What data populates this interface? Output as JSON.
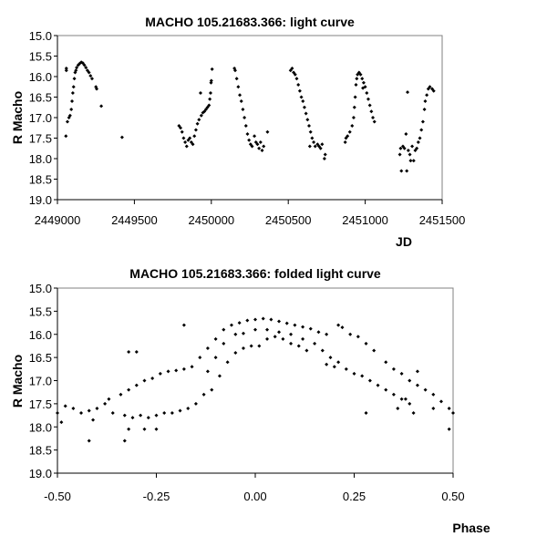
{
  "chart_data": [
    {
      "type": "scatter",
      "title": "MACHO 105.21683.366: light curve",
      "xlabel": "JD",
      "ylabel": "R Macho",
      "xlim": [
        2449000,
        2451500
      ],
      "ylim": [
        15.0,
        19.0
      ],
      "y_inverted": true,
      "grid": false,
      "xticks": [
        "2449000",
        "2449500",
        "2450000",
        "2450500",
        "2451000",
        "2451500"
      ],
      "yticks": [
        "15.0",
        "15.5",
        "16.0",
        "16.5",
        "17.0",
        "17.5",
        "18.0",
        "18.5",
        "19.0"
      ],
      "points": [
        [
          2449055,
          17.45
        ],
        [
          2449058,
          15.8
        ],
        [
          2449058,
          15.85
        ],
        [
          2449065,
          17.1
        ],
        [
          2449075,
          17.0
        ],
        [
          2449082,
          16.95
        ],
        [
          2449090,
          16.8
        ],
        [
          2449095,
          16.6
        ],
        [
          2449100,
          16.4
        ],
        [
          2449105,
          16.25
        ],
        [
          2449110,
          16.05
        ],
        [
          2449115,
          15.9
        ],
        [
          2449120,
          15.85
        ],
        [
          2449125,
          15.78
        ],
        [
          2449135,
          15.72
        ],
        [
          2449145,
          15.68
        ],
        [
          2449155,
          15.65
        ],
        [
          2449165,
          15.67
        ],
        [
          2449175,
          15.72
        ],
        [
          2449185,
          15.78
        ],
        [
          2449195,
          15.85
        ],
        [
          2449205,
          15.9
        ],
        [
          2449215,
          15.98
        ],
        [
          2449225,
          16.05
        ],
        [
          2449250,
          16.25
        ],
        [
          2449255,
          16.3
        ],
        [
          2449285,
          16.72
        ],
        [
          2449420,
          17.48
        ],
        [
          2449790,
          17.2
        ],
        [
          2449800,
          17.25
        ],
        [
          2449810,
          17.35
        ],
        [
          2449820,
          17.5
        ],
        [
          2449830,
          17.6
        ],
        [
          2449840,
          17.7
        ],
        [
          2449850,
          17.55
        ],
        [
          2449860,
          17.5
        ],
        [
          2449870,
          17.6
        ],
        [
          2449880,
          17.65
        ],
        [
          2449890,
          17.45
        ],
        [
          2449900,
          17.3
        ],
        [
          2449910,
          17.15
        ],
        [
          2449920,
          17.05
        ],
        [
          2449930,
          16.4
        ],
        [
          2449935,
          16.95
        ],
        [
          2449945,
          16.88
        ],
        [
          2449955,
          16.85
        ],
        [
          2449965,
          16.8
        ],
        [
          2449975,
          16.75
        ],
        [
          2449985,
          16.7
        ],
        [
          2449990,
          16.55
        ],
        [
          2449995,
          16.4
        ],
        [
          2449998,
          16.15
        ],
        [
          2450000,
          16.1
        ],
        [
          2450005,
          15.82
        ],
        [
          2450150,
          15.8
        ],
        [
          2450155,
          15.85
        ],
        [
          2450165,
          16.05
        ],
        [
          2450175,
          16.25
        ],
        [
          2450185,
          16.45
        ],
        [
          2450195,
          16.6
        ],
        [
          2450205,
          16.8
        ],
        [
          2450215,
          17.0
        ],
        [
          2450225,
          17.2
        ],
        [
          2450235,
          17.4
        ],
        [
          2450245,
          17.55
        ],
        [
          2450255,
          17.65
        ],
        [
          2450265,
          17.7
        ],
        [
          2450280,
          17.45
        ],
        [
          2450290,
          17.6
        ],
        [
          2450300,
          17.65
        ],
        [
          2450310,
          17.75
        ],
        [
          2450320,
          17.6
        ],
        [
          2450330,
          17.8
        ],
        [
          2450340,
          17.7
        ],
        [
          2450365,
          17.35
        ],
        [
          2450515,
          15.85
        ],
        [
          2450525,
          15.8
        ],
        [
          2450535,
          15.9
        ],
        [
          2450545,
          15.95
        ],
        [
          2450555,
          16.05
        ],
        [
          2450565,
          16.2
        ],
        [
          2450575,
          16.35
        ],
        [
          2450585,
          16.5
        ],
        [
          2450595,
          16.6
        ],
        [
          2450605,
          16.75
        ],
        [
          2450615,
          16.9
        ],
        [
          2450625,
          17.05
        ],
        [
          2450635,
          17.2
        ],
        [
          2450645,
          17.35
        ],
        [
          2450655,
          17.5
        ],
        [
          2450665,
          17.6
        ],
        [
          2450640,
          17.7
        ],
        [
          2450675,
          17.7
        ],
        [
          2450690,
          17.65
        ],
        [
          2450700,
          17.7
        ],
        [
          2450710,
          17.75
        ],
        [
          2450720,
          17.65
        ],
        [
          2450735,
          18.0
        ],
        [
          2450740,
          17.9
        ],
        [
          2450870,
          17.6
        ],
        [
          2450875,
          17.5
        ],
        [
          2450885,
          17.45
        ],
        [
          2450900,
          17.35
        ],
        [
          2450915,
          17.2
        ],
        [
          2450925,
          17.0
        ],
        [
          2450930,
          16.75
        ],
        [
          2450935,
          16.5
        ],
        [
          2450940,
          16.2
        ],
        [
          2450945,
          16.05
        ],
        [
          2450950,
          15.95
        ],
        [
          2450960,
          15.9
        ],
        [
          2450970,
          15.95
        ],
        [
          2450980,
          16.05
        ],
        [
          2450990,
          16.15
        ],
        [
          2451000,
          16.25
        ],
        [
          2451010,
          16.4
        ],
        [
          2451020,
          16.55
        ],
        [
          2451030,
          16.7
        ],
        [
          2451040,
          16.85
        ],
        [
          2451050,
          17.0
        ],
        [
          2451060,
          17.1
        ],
        [
          2450985,
          16.28
        ],
        [
          2451225,
          17.9
        ],
        [
          2451230,
          17.75
        ],
        [
          2451235,
          18.3
        ],
        [
          2451245,
          17.7
        ],
        [
          2451255,
          17.75
        ],
        [
          2451265,
          17.4
        ],
        [
          2451270,
          18.3
        ],
        [
          2451275,
          16.38
        ],
        [
          2451280,
          17.8
        ],
        [
          2451290,
          17.9
        ],
        [
          2451295,
          18.05
        ],
        [
          2451305,
          17.7
        ],
        [
          2451315,
          18.05
        ],
        [
          2451325,
          17.8
        ],
        [
          2451335,
          17.75
        ],
        [
          2451345,
          17.6
        ],
        [
          2451355,
          17.5
        ],
        [
          2451365,
          17.3
        ],
        [
          2451375,
          17.1
        ],
        [
          2451385,
          16.8
        ],
        [
          2451390,
          16.6
        ],
        [
          2451400,
          16.45
        ],
        [
          2451410,
          16.3
        ],
        [
          2451420,
          16.25
        ],
        [
          2451435,
          16.3
        ],
        [
          2451445,
          16.35
        ]
      ]
    },
    {
      "type": "scatter",
      "title": "MACHO 105.21683.366: folded light curve",
      "xlabel": "Phase",
      "ylabel": "R Macho",
      "xlim": [
        -0.5,
        0.5
      ],
      "ylim": [
        15.0,
        19.0
      ],
      "y_inverted": true,
      "grid": false,
      "xticks": [
        "-0.50",
        "-0.25",
        "0.00",
        "0.25",
        "0.50"
      ],
      "yticks": [
        "15.0",
        "15.5",
        "16.0",
        "16.5",
        "17.0",
        "17.5",
        "18.0",
        "18.5",
        "19.0"
      ],
      "points": [
        [
          -0.5,
          17.7
        ],
        [
          -0.49,
          17.9
        ],
        [
          -0.48,
          17.55
        ],
        [
          -0.46,
          17.6
        ],
        [
          -0.44,
          17.7
        ],
        [
          -0.42,
          17.65
        ],
        [
          -0.41,
          17.85
        ],
        [
          -0.4,
          17.6
        ],
        [
          -0.38,
          17.5
        ],
        [
          -0.37,
          17.4
        ],
        [
          -0.36,
          17.7
        ],
        [
          -0.34,
          17.3
        ],
        [
          -0.32,
          17.2
        ],
        [
          -0.3,
          17.1
        ],
        [
          -0.28,
          17.0
        ],
        [
          -0.26,
          16.95
        ],
        [
          -0.24,
          16.85
        ],
        [
          -0.22,
          16.8
        ],
        [
          -0.2,
          16.78
        ],
        [
          -0.18,
          16.75
        ],
        [
          -0.16,
          16.7
        ],
        [
          -0.14,
          16.5
        ],
        [
          -0.12,
          16.3
        ],
        [
          -0.1,
          16.1
        ],
        [
          -0.08,
          15.9
        ],
        [
          -0.06,
          15.8
        ],
        [
          -0.04,
          15.75
        ],
        [
          -0.02,
          15.7
        ],
        [
          0.0,
          15.68
        ],
        [
          0.02,
          15.66
        ],
        [
          0.04,
          15.68
        ],
        [
          0.06,
          15.72
        ],
        [
          0.08,
          15.76
        ],
        [
          0.1,
          15.8
        ],
        [
          0.12,
          15.84
        ],
        [
          0.14,
          15.88
        ],
        [
          0.16,
          15.95
        ],
        [
          0.18,
          16.0
        ],
        [
          -0.33,
          17.75
        ],
        [
          -0.31,
          17.8
        ],
        [
          -0.29,
          17.75
        ],
        [
          -0.27,
          17.8
        ],
        [
          -0.25,
          17.75
        ],
        [
          -0.23,
          17.7
        ],
        [
          -0.21,
          17.7
        ],
        [
          -0.19,
          17.65
        ],
        [
          -0.17,
          17.6
        ],
        [
          -0.15,
          17.5
        ],
        [
          -0.13,
          17.3
        ],
        [
          -0.11,
          17.2
        ],
        [
          -0.09,
          16.9
        ],
        [
          -0.07,
          16.6
        ],
        [
          -0.05,
          16.4
        ],
        [
          -0.03,
          16.3
        ],
        [
          -0.01,
          16.25
        ],
        [
          0.01,
          16.25
        ],
        [
          0.03,
          16.1
        ],
        [
          0.05,
          16.05
        ],
        [
          0.07,
          16.1
        ],
        [
          0.09,
          16.2
        ],
        [
          0.11,
          16.25
        ],
        [
          0.13,
          16.35
        ],
        [
          -0.12,
          16.8
        ],
        [
          -0.1,
          16.5
        ],
        [
          -0.08,
          16.2
        ],
        [
          -0.05,
          16.0
        ],
        [
          -0.03,
          15.98
        ],
        [
          0.0,
          15.9
        ],
        [
          0.03,
          15.9
        ],
        [
          0.06,
          15.95
        ],
        [
          0.09,
          16.0
        ],
        [
          0.12,
          16.1
        ],
        [
          0.15,
          16.2
        ],
        [
          0.17,
          16.35
        ],
        [
          0.19,
          16.5
        ],
        [
          0.21,
          16.6
        ],
        [
          0.23,
          16.75
        ],
        [
          0.25,
          16.85
        ],
        [
          0.27,
          16.9
        ],
        [
          0.29,
          17.0
        ],
        [
          0.31,
          17.1
        ],
        [
          0.33,
          17.2
        ],
        [
          0.35,
          17.3
        ],
        [
          0.37,
          17.4
        ],
        [
          0.39,
          17.5
        ],
        [
          0.21,
          15.8
        ],
        [
          0.22,
          15.85
        ],
        [
          0.24,
          16.0
        ],
        [
          0.26,
          16.05
        ],
        [
          0.28,
          16.2
        ],
        [
          0.3,
          16.35
        ],
        [
          0.33,
          16.6
        ],
        [
          0.35,
          16.75
        ],
        [
          0.37,
          16.85
        ],
        [
          0.39,
          17.0
        ],
        [
          0.41,
          17.1
        ],
        [
          0.43,
          17.2
        ],
        [
          0.45,
          17.3
        ],
        [
          0.47,
          17.45
        ],
        [
          0.49,
          17.6
        ],
        [
          0.5,
          17.7
        ],
        [
          -0.42,
          18.3
        ],
        [
          -0.33,
          18.3
        ],
        [
          -0.32,
          18.05
        ],
        [
          -0.32,
          16.38
        ],
        [
          -0.3,
          16.38
        ],
        [
          -0.18,
          15.8
        ],
        [
          -0.28,
          18.05
        ],
        [
          -0.25,
          18.05
        ],
        [
          0.28,
          17.7
        ],
        [
          0.41,
          16.8
        ],
        [
          0.49,
          18.05
        ],
        [
          0.36,
          17.6
        ],
        [
          0.38,
          17.4
        ],
        [
          0.4,
          17.7
        ],
        [
          0.45,
          17.6
        ],
        [
          0.2,
          16.7
        ],
        [
          0.18,
          16.65
        ]
      ]
    }
  ]
}
